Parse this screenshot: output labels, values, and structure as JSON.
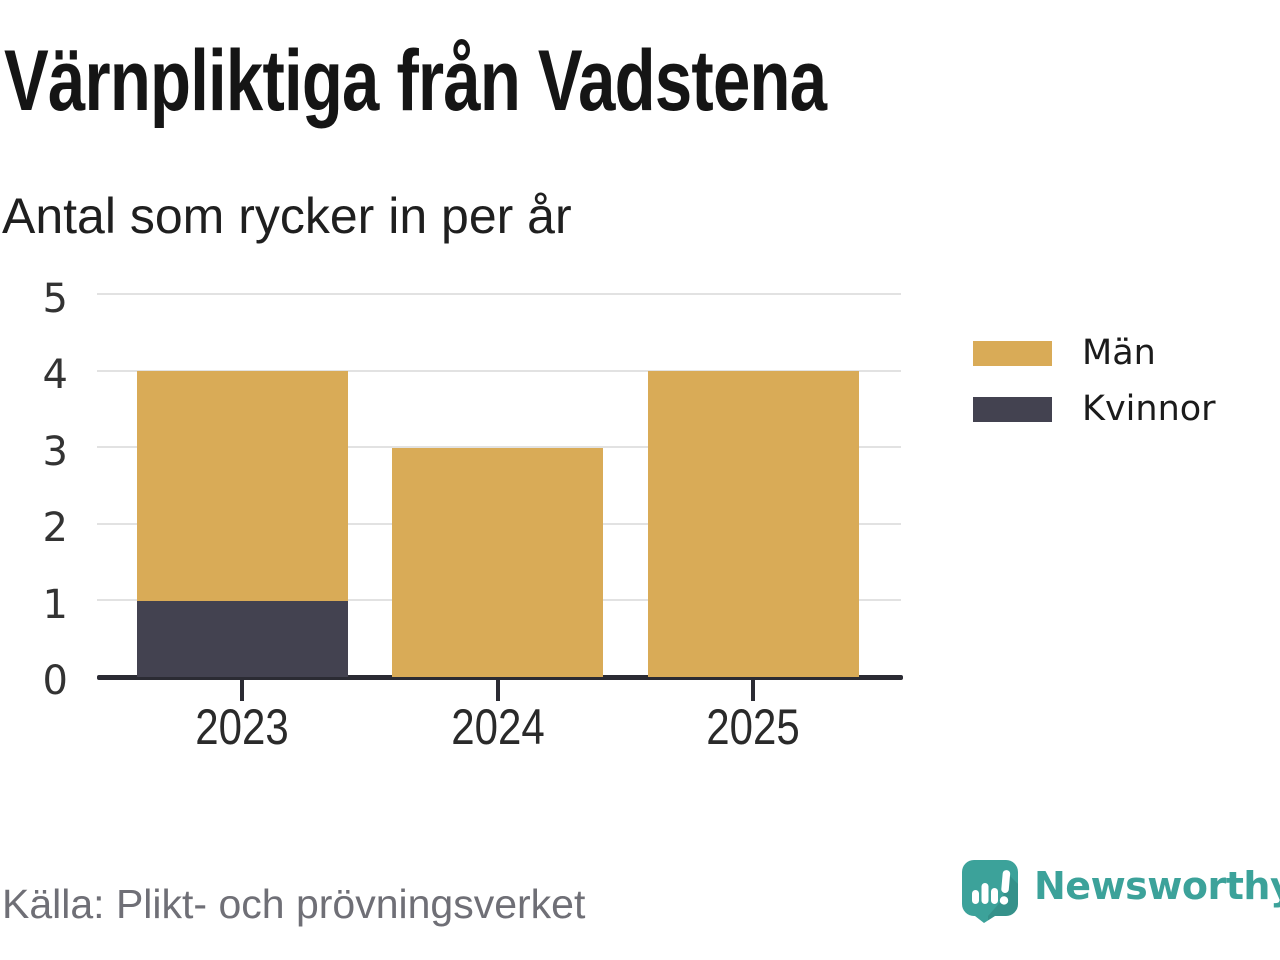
{
  "header": {
    "title": "Värnpliktiga från Vadstena",
    "subtitle": "Antal som rycker in per år"
  },
  "chart_data": {
    "type": "bar",
    "stacked": true,
    "title": "Värnpliktiga från Vadstena",
    "subtitle": "Antal som rycker in per år",
    "categories": [
      "2023",
      "2024",
      "2025"
    ],
    "series": [
      {
        "name": "Män",
        "color": "#D9AB57",
        "values": [
          3,
          3,
          4
        ]
      },
      {
        "name": "Kvinnor",
        "color": "#434250",
        "values": [
          1,
          0,
          0
        ]
      }
    ],
    "stack_totals": [
      4,
      3,
      4
    ],
    "xlabel": "",
    "ylabel": "",
    "ylim": [
      0,
      5
    ],
    "yticks": [
      0,
      1,
      2,
      3,
      4,
      5
    ],
    "grid": "horizontal",
    "legend_position": "right",
    "source": "Källa: Plikt- och prövningsverket"
  },
  "legend": {
    "items": [
      {
        "label": "Män",
        "color": "#D9AB57"
      },
      {
        "label": "Kvinnor",
        "color": "#434250"
      }
    ]
  },
  "footer": {
    "source": "Källa: Plikt- och prövningsverket",
    "brand": "Newsworthy",
    "logo_icon": "newsworthy-speech-bubble-bar-chart-icon"
  },
  "colors": {
    "men": "#D9AB57",
    "women": "#434250",
    "axis": "#2B2B33",
    "gridline": "#E2E2E2",
    "title_text": "#151515",
    "tick_text": "#333333",
    "source_text": "#6F6F76",
    "brand_teal": "#3CA29A",
    "background": "#FFFFFF"
  }
}
